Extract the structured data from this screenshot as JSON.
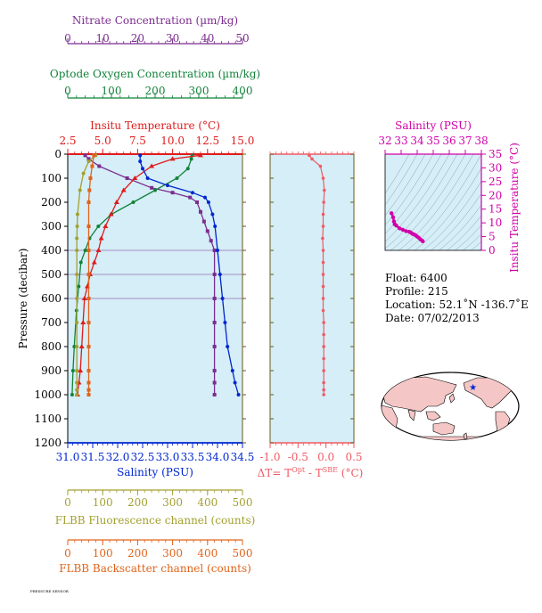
{
  "colors": {
    "nitrate": "#7b2d8e",
    "oxygen": "#12823a",
    "temperature": "#e01b1b",
    "salinity": "#0026d0",
    "fluorescence": "#a3a030",
    "backscatter": "#e0641c",
    "delta": "#f05a64",
    "ts_axis": "#d100a8",
    "panel_bg": "#d5eef7",
    "frame": "#6b5a17",
    "land": "#f5c6c6"
  },
  "chart_data": [
    {
      "type": "line",
      "panel": "main-profile",
      "ylabel": "Pressure (decibar)",
      "ylim": [
        1200,
        0
      ],
      "yticks": [
        0,
        100,
        200,
        300,
        400,
        500,
        600,
        700,
        800,
        900,
        1000,
        1100,
        1200
      ],
      "x_axes": [
        {
          "name": "Nitrate Concentration (µm/kg)",
          "lim": [
            0,
            50
          ],
          "ticks": [
            0,
            10,
            20,
            30,
            40,
            50
          ],
          "color": "nitrate"
        },
        {
          "name": "Optode Oxygen Concentration (µm/kg)",
          "lim": [
            0,
            400
          ],
          "ticks": [
            0,
            100,
            200,
            300,
            400
          ],
          "color": "oxygen"
        },
        {
          "name": "Insitu Temperature (°C)",
          "lim": [
            2.5,
            15.0
          ],
          "ticks": [
            "2.5",
            "5.0",
            "7.5",
            "10.0",
            "12.5",
            "15.0"
          ],
          "color": "temperature"
        },
        {
          "name": "Salinity (PSU)",
          "lim": [
            31.0,
            34.5
          ],
          "ticks": [
            "31.0",
            "31.5",
            "32.0",
            "32.5",
            "33.0",
            "33.5",
            "34.0",
            "34.5"
          ],
          "color": "salinity"
        },
        {
          "name": "FLBB Fluorescence channel (counts)",
          "lim": [
            0,
            500
          ],
          "ticks": [
            0,
            100,
            200,
            300,
            400,
            500
          ],
          "color": "fluorescence"
        },
        {
          "name": "FLBB Backscatter channel (counts)",
          "lim": [
            0,
            500
          ],
          "ticks": [
            0,
            100,
            200,
            300,
            400,
            500
          ],
          "color": "backscatter"
        }
      ],
      "series": [
        {
          "name": "Nitrate Concentration (µm/kg)",
          "axis": 0,
          "color": "nitrate",
          "x": [
            5,
            6,
            9,
            17,
            24,
            30,
            35,
            37,
            38,
            39,
            40,
            41,
            42,
            42,
            42,
            42,
            42,
            42,
            42,
            42
          ],
          "y": [
            5,
            20,
            50,
            100,
            140,
            160,
            180,
            200,
            240,
            280,
            320,
            360,
            400,
            500,
            600,
            700,
            800,
            900,
            950,
            1000
          ]
        },
        {
          "name": "Optode Oxygen Concentration (µm/kg)",
          "axis": 1,
          "color": "oxygen",
          "x": [
            285,
            283,
            275,
            250,
            200,
            150,
            100,
            70,
            50,
            40,
            30,
            25,
            20,
            15,
            12,
            10
          ],
          "y": [
            5,
            20,
            60,
            100,
            150,
            200,
            250,
            300,
            350,
            400,
            450,
            550,
            650,
            800,
            900,
            1000
          ]
        },
        {
          "name": "Insitu Temperature (°C)",
          "axis": 2,
          "color": "temperature",
          "x": [
            12.0,
            10.0,
            8.5,
            7.3,
            6.5,
            6.0,
            5.6,
            5.2,
            4.9,
            4.7,
            4.4,
            4.1,
            3.9,
            3.7,
            3.6,
            3.5,
            3.4,
            3.3,
            3.2
          ],
          "y": [
            5,
            20,
            50,
            100,
            150,
            200,
            250,
            300,
            350,
            400,
            450,
            500,
            550,
            600,
            700,
            800,
            900,
            950,
            1000
          ]
        },
        {
          "name": "Salinity (PSU)",
          "axis": 3,
          "color": "salinity",
          "x": [
            32.45,
            32.45,
            32.5,
            32.6,
            33.0,
            33.5,
            33.75,
            33.82,
            33.9,
            33.95,
            34.0,
            34.05,
            34.1,
            34.15,
            34.2,
            34.3,
            34.35,
            34.42
          ],
          "y": [
            5,
            30,
            60,
            100,
            130,
            160,
            180,
            200,
            250,
            300,
            400,
            500,
            600,
            700,
            800,
            900,
            950,
            1000
          ]
        },
        {
          "name": "FLBB Fluorescence channel (counts)",
          "axis": 4,
          "color": "fluorescence",
          "x": [
            80,
            60,
            45,
            35,
            28,
            27,
            26,
            26,
            26,
            26,
            26,
            26,
            26,
            26,
            26,
            26
          ],
          "y": [
            5,
            30,
            80,
            150,
            250,
            300,
            350,
            400,
            500,
            600,
            700,
            800,
            900,
            950,
            980,
            1000
          ]
        },
        {
          "name": "FLBB Backscatter channel (counts)",
          "axis": 5,
          "color": "backscatter",
          "x": [
            75,
            70,
            65,
            62,
            60,
            60,
            60,
            60,
            60,
            60,
            60,
            60,
            60,
            60,
            60
          ],
          "y": [
            5,
            50,
            100,
            150,
            200,
            300,
            400,
            500,
            600,
            700,
            800,
            900,
            950,
            980,
            1000
          ]
        }
      ]
    },
    {
      "type": "line",
      "panel": "delta-t",
      "xlabel": "ΔT= T",
      "xlabel_sup1": "Opt",
      "xlabel_mid": " - T",
      "xlabel_sup2": "SBE",
      "xlabel_tail": " (°C)",
      "xlim": [
        -1.0,
        0.5
      ],
      "xticks": [
        "-1.0",
        "-0.5",
        "0.0",
        "0.5"
      ],
      "ylim": [
        1200,
        0
      ],
      "series": [
        {
          "name": "ΔT",
          "color": "delta",
          "x": [
            -0.3,
            -0.25,
            -0.1,
            -0.05,
            -0.03,
            -0.04,
            -0.05,
            -0.05,
            -0.06,
            -0.05,
            -0.05,
            -0.05,
            -0.05,
            -0.05,
            -0.05,
            -0.04,
            -0.04,
            -0.04,
            -0.04,
            -0.04,
            -0.04,
            -0.04,
            -0.04
          ],
          "y": [
            5,
            20,
            50,
            100,
            150,
            200,
            250,
            300,
            350,
            400,
            450,
            500,
            550,
            600,
            650,
            700,
            750,
            800,
            850,
            900,
            950,
            980,
            1000
          ]
        }
      ]
    },
    {
      "type": "scatter",
      "panel": "ts-diagram",
      "xlabel": "Salinity (PSU)",
      "ylabel": "Insitu Temperature (°C)",
      "xlim": [
        32,
        38
      ],
      "ylim": [
        0,
        35
      ],
      "xticks": [
        32,
        33,
        34,
        35,
        36,
        37,
        38
      ],
      "yticks": [
        0,
        5,
        10,
        15,
        20,
        25,
        30,
        35
      ],
      "series": [
        {
          "name": "T-S",
          "color": "ts_axis",
          "x": [
            32.4,
            32.5,
            32.55,
            32.6,
            32.7,
            32.9,
            33.1,
            33.3,
            33.5,
            33.6,
            33.7,
            33.8,
            33.9,
            34.0,
            34.1,
            34.2,
            34.3,
            34.35
          ],
          "y": [
            13.5,
            12.0,
            10.5,
            9.5,
            9.0,
            8.0,
            7.5,
            7.0,
            6.8,
            6.5,
            6.0,
            5.8,
            5.5,
            5.0,
            4.6,
            4.0,
            3.6,
            3.3
          ]
        }
      ]
    }
  ],
  "info": {
    "float": "Float:  6400",
    "profile": "Profile:  215",
    "location": "Location:  52.1˚N  -136.7˚E",
    "date": "Date:  07/02/2013"
  },
  "map": {
    "marker_lat": 52.1,
    "marker_lon": -136.7
  },
  "footer_text": "PRESSURE SENSOR"
}
